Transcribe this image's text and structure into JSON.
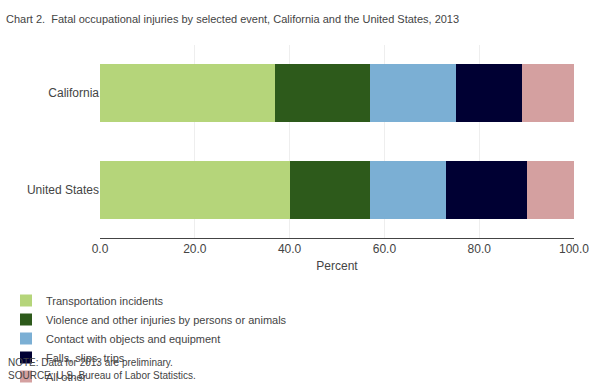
{
  "chart_data": {
    "type": "bar",
    "orientation": "horizontal",
    "stacked": true,
    "title": "Chart 2.  Fatal occupational injuries by selected event, California and the United States, 2013",
    "xlabel": "Percent",
    "annotations": [
      "NOTE: Data for 2013 are preliminary.",
      "SOURCE: U.S. Bureau of Labor Statistics."
    ],
    "categories": [
      "United States",
      "California"
    ],
    "series": [
      {
        "name": "Transportation incidents",
        "color": "#b5d57a",
        "values": [
          40.0,
          37.0
        ]
      },
      {
        "name": "Violence and other injuries by persons or animals",
        "color": "#2d5a1b",
        "values": [
          17.0,
          20.0
        ]
      },
      {
        "name": "Contact with objects and equipment",
        "color": "#7bafd4",
        "values": [
          16.0,
          18.0
        ]
      },
      {
        "name": "Falls, slips, trips",
        "color": "#000033",
        "values": [
          17.0,
          14.0
        ]
      },
      {
        "name": "All other",
        "color": "#d4a0a0",
        "values": [
          10.0,
          11.0
        ]
      }
    ],
    "xlim": [
      0,
      100
    ],
    "xticks": [
      {
        "value": 0,
        "label": "0.0"
      },
      {
        "value": 20,
        "label": "20.0"
      },
      {
        "value": 40,
        "label": "40.0"
      },
      {
        "value": 60,
        "label": "60.0"
      },
      {
        "value": 80,
        "label": "80.0"
      },
      {
        "value": 100,
        "label": "100.0"
      }
    ],
    "grid": true,
    "legend": "bottom"
  }
}
